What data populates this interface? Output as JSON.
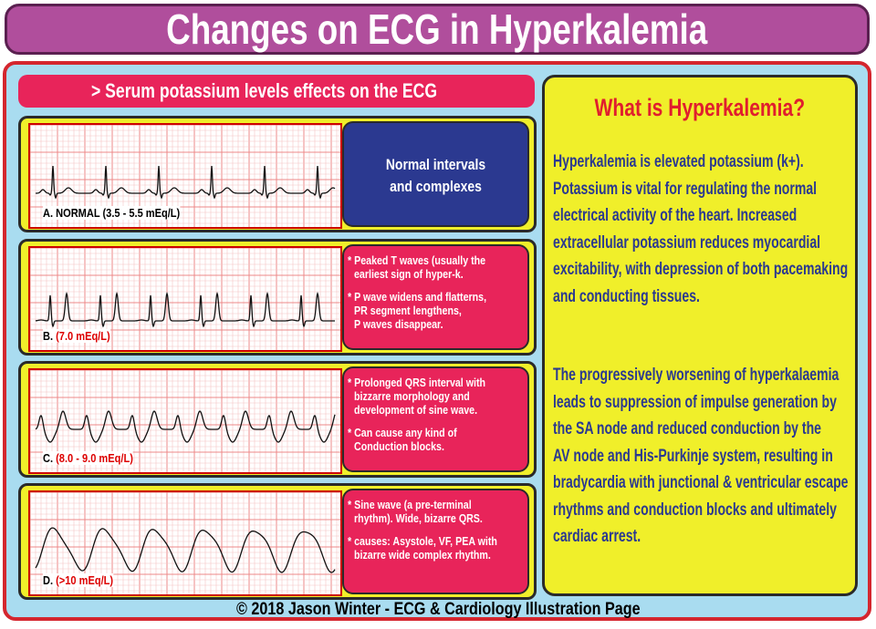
{
  "header": {
    "title": "Changes on ECG in Hyperkalemia"
  },
  "left": {
    "heading": "> Serum potassium levels effects on the ECG",
    "panels": [
      {
        "letter": "A. NORMAL",
        "range": "(3.5 - 5.5 mEq/L)",
        "bullets": [
          [
            "Normal intervals",
            "and complexes"
          ]
        ]
      },
      {
        "letter": "B.",
        "range": "(7.0 mEq/L)",
        "bullets": [
          [
            "* Peaked T waves (usually the",
            "earliest sign of hyper-k."
          ],
          [
            "* P wave widens and flatterns,",
            "PR segment lengthens,",
            "P waves disappear."
          ]
        ]
      },
      {
        "letter": "C.",
        "range": "(8.0 - 9.0 mEq/L)",
        "bullets": [
          [
            "* Prolonged QRS interval with",
            "bizzarre morphology and",
            "development of sine wave."
          ],
          [
            "* Can cause any kind of",
            "Conduction blocks."
          ]
        ]
      },
      {
        "letter": "D.",
        "range": "(>10  mEq/L)",
        "bullets": [
          [
            "* Sine wave (a pre-terminal",
            "rhythm). Wide, bizarre QRS."
          ],
          [
            "* causes: Asystole, VF, PEA with",
            "bizarre wide complex rhythm."
          ]
        ]
      }
    ]
  },
  "right": {
    "title": "What is Hyperkalemia?",
    "paragraphs": [
      [
        "Hyperkalemia is elevated potassium (k+).",
        "Potassium is vital for regulating the normal",
        "electrical activity of the heart. Increased",
        "extracellular potassium reduces myocardial",
        "excitability, with depression of both pacemaking",
        "and conducting tissues."
      ],
      [
        "The progressively worsening of hyperkalaemia",
        "leads to suppression of impulse generation by",
        "the SA node and reduced conduction by  the",
        "AV node and His-Purkinje system, resulting in",
        "bradycardia with junctional & ventricular escape",
        "rhythms and conduction blocks and ultimately",
        "cardiac arrest."
      ]
    ]
  },
  "footer": "© 2018 Jason Winter - ECG & Cardiology Illustration Page"
}
